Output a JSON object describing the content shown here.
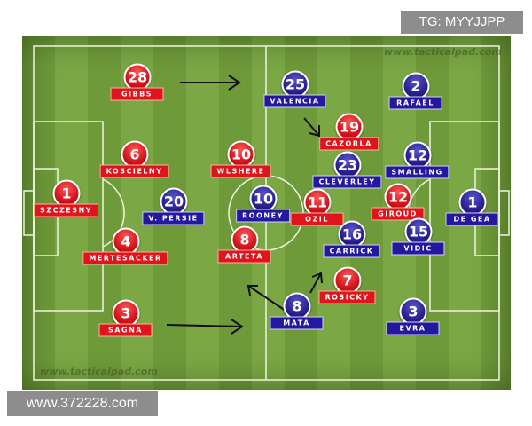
{
  "watermarks": {
    "top_right": "TG: MYYJJPP",
    "bottom_left": "www.372228.com",
    "pitch_top": "www.tacticalpad.com",
    "pitch_bottom": "www.tacticalpad.com"
  },
  "colors": {
    "red_team": "#e0141c",
    "blue_team": "#2418a0",
    "pitch": "#7ba845"
  },
  "red_players": [
    {
      "number": "28",
      "name": "GIBBS"
    },
    {
      "number": "6",
      "name": "KOSCIELNY"
    },
    {
      "number": "1",
      "name": "SZCZESNY"
    },
    {
      "number": "4",
      "name": "MERTESACKER"
    },
    {
      "number": "3",
      "name": "SAGNA"
    },
    {
      "number": "10",
      "name": "WLSHERE"
    },
    {
      "number": "8",
      "name": "ARTETA"
    },
    {
      "number": "19",
      "name": "CAZORLA"
    },
    {
      "number": "11",
      "name": "OZIL"
    },
    {
      "number": "12",
      "name": "GIROUD"
    },
    {
      "number": "7",
      "name": "ROSICKY"
    }
  ],
  "blue_players": [
    {
      "number": "20",
      "name": "V. PERSIE"
    },
    {
      "number": "10",
      "name": "ROONEY"
    },
    {
      "number": "25",
      "name": "VALENCIA"
    },
    {
      "number": "23",
      "name": "CLEVERLEY"
    },
    {
      "number": "16",
      "name": "CARRICK"
    },
    {
      "number": "8",
      "name": "MATA"
    },
    {
      "number": "2",
      "name": "RAFAEL"
    },
    {
      "number": "12",
      "name": "SMALLING"
    },
    {
      "number": "15",
      "name": "VIDIC"
    },
    {
      "number": "3",
      "name": "EVRA"
    },
    {
      "number": "1",
      "name": "DE GEA"
    }
  ]
}
